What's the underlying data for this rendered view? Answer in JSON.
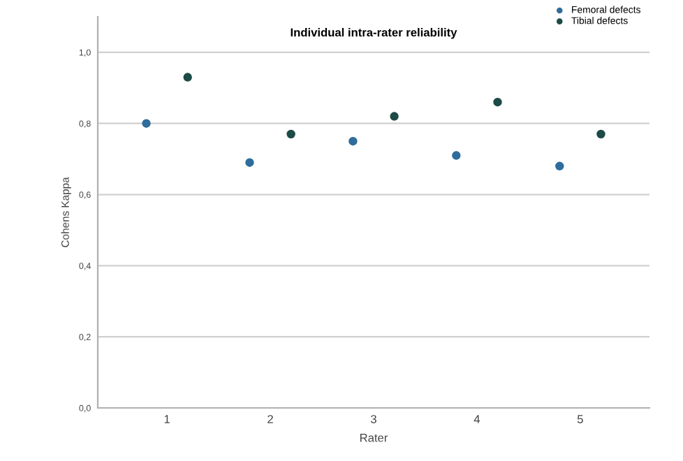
{
  "chart_data": {
    "type": "scatter",
    "title": "Individual intra-rater reliability",
    "xlabel": "Rater",
    "ylabel": "Cohens Kappa",
    "series": [
      {
        "name": "Femoral defects",
        "color": "#2f6d9c",
        "x": [
          0.8,
          1.8,
          2.8,
          3.8,
          4.8
        ],
        "values": [
          0.8,
          0.69,
          0.75,
          0.71,
          0.68
        ]
      },
      {
        "name": "Tibial defects",
        "color": "#1d4b47",
        "x": [
          1.2,
          2.2,
          3.2,
          4.2,
          5.2
        ],
        "values": [
          0.93,
          0.77,
          0.82,
          0.86,
          0.77
        ]
      }
    ],
    "xlim": [
      0.33,
      5.67
    ],
    "xticks": [
      1,
      2,
      3,
      4,
      5
    ],
    "ylim": [
      0,
      1.1
    ],
    "yticks": [
      {
        "value": 0,
        "label": "0,0"
      },
      {
        "value": 0.2,
        "label": "0,2"
      },
      {
        "value": 0.4,
        "label": "0,4"
      },
      {
        "value": 0.6,
        "label": "0,6"
      },
      {
        "value": 0.8,
        "label": "0,8"
      },
      {
        "value": 1.0,
        "label": "1,0"
      }
    ],
    "grid": "y",
    "legend": "top right",
    "marker": "circle"
  }
}
